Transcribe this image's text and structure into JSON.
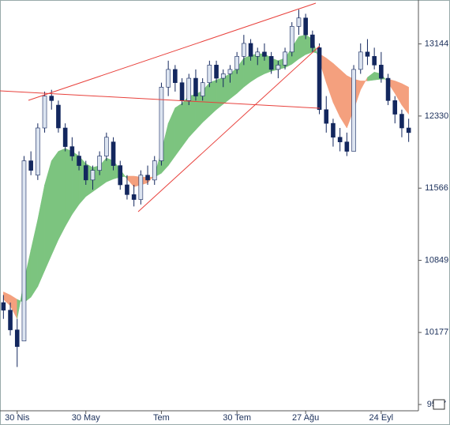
{
  "chart_data": {
    "type": "candlestick",
    "log_scale": true,
    "categories": [
      null,
      null,
      "30 Nis",
      null,
      null,
      null,
      null,
      null,
      null,
      null,
      null,
      null,
      "30 May",
      null,
      null,
      null,
      null,
      null,
      null,
      null,
      null,
      null,
      null,
      "Tem",
      null,
      null,
      null,
      null,
      null,
      null,
      null,
      null,
      null,
      null,
      "30 Tem",
      null,
      null,
      null,
      null,
      null,
      null,
      null,
      null,
      null,
      "27 Ağu",
      null,
      null,
      null,
      null,
      null,
      null,
      null,
      null,
      null,
      null,
      "24 Eyl",
      null,
      null,
      null,
      null
    ],
    "open": [
      10450,
      10380,
      10200,
      10100,
      11850,
      11700,
      12200,
      12550,
      12450,
      12200,
      12000,
      11900,
      11800,
      11650,
      11750,
      11900,
      12050,
      11800,
      11600,
      11500,
      11450,
      11700,
      11650,
      11850,
      12650,
      12850,
      12700,
      12500,
      12750,
      12550,
      12700,
      12900,
      12750,
      12800,
      12850,
      13000,
      13150,
      13000,
      13050,
      13000,
      12850,
      12900,
      13050,
      13350,
      13450,
      13250,
      13100,
      12400,
      12250,
      12100,
      12050,
      11950,
      12850,
      13050,
      13000,
      12900,
      12750,
      12500,
      12350,
      12200
    ],
    "high": [
      10520,
      10450,
      10300,
      11900,
      11950,
      12250,
      12600,
      12620,
      12500,
      12250,
      12100,
      11950,
      11850,
      11800,
      11950,
      12150,
      12100,
      11850,
      11700,
      11600,
      11750,
      11800,
      11900,
      12700,
      12950,
      12900,
      12750,
      12800,
      12850,
      12750,
      12950,
      12950,
      12850,
      12900,
      13050,
      13250,
      13200,
      13100,
      13150,
      13050,
      12950,
      13100,
      13400,
      13550,
      13500,
      13300,
      13150,
      12550,
      12300,
      12200,
      12150,
      12900,
      13150,
      13200,
      13100,
      13050,
      12800,
      12550,
      12400,
      12300
    ],
    "low": [
      10300,
      10150,
      9870,
      10100,
      11700,
      11650,
      12150,
      12400,
      12150,
      11950,
      11850,
      11750,
      11600,
      11550,
      11700,
      11850,
      11750,
      11550,
      11450,
      11380,
      11400,
      11600,
      11600,
      11800,
      12550,
      12600,
      12450,
      12450,
      12500,
      12500,
      12650,
      12700,
      12650,
      12700,
      12800,
      12900,
      12950,
      12900,
      12950,
      12800,
      12750,
      12850,
      13000,
      13250,
      13200,
      13050,
      12350,
      12150,
      12000,
      11950,
      11900,
      11950,
      12800,
      12900,
      12850,
      12700,
      12450,
      12250,
      12100,
      12050
    ],
    "close": [
      10380,
      10200,
      10050,
      11850,
      11750,
      12200,
      12550,
      12500,
      12200,
      12000,
      11900,
      11800,
      11650,
      11750,
      11900,
      12100,
      11800,
      11600,
      11500,
      11450,
      11700,
      11650,
      11850,
      12650,
      12850,
      12700,
      12500,
      12750,
      12550,
      12700,
      12900,
      12750,
      12800,
      12850,
      13000,
      13150,
      13000,
      13050,
      13000,
      12850,
      12900,
      13050,
      13350,
      13450,
      13250,
      13100,
      12400,
      12250,
      12100,
      12050,
      11950,
      12850,
      13050,
      13000,
      12900,
      12750,
      12500,
      12350,
      12200,
      12150
    ],
    "up_color": "#dce4f0",
    "down_color": "#13275e",
    "fast": [
      10480,
      10420,
      10300,
      10650,
      10950,
      11250,
      11600,
      11850,
      11950,
      11980,
      11950,
      11900,
      11820,
      11780,
      11800,
      11880,
      11850,
      11760,
      11660,
      11580,
      11600,
      11620,
      11700,
      11950,
      12250,
      12420,
      12470,
      12550,
      12570,
      12610,
      12700,
      12730,
      12760,
      12800,
      12870,
      12980,
      13010,
      13030,
      13030,
      12980,
      12950,
      12980,
      13100,
      13230,
      13250,
      13200,
      12950,
      12700,
      12480,
      12320,
      12200,
      12400,
      12620,
      12760,
      12820,
      12800,
      12700,
      12580,
      12450,
      12350
    ],
    "slow": [
      10550,
      10520,
      10480,
      10450,
      10500,
      10600,
      10750,
      10900,
      11050,
      11180,
      11300,
      11400,
      11480,
      11530,
      11580,
      11630,
      11660,
      11680,
      11690,
      11690,
      11680,
      11680,
      11680,
      11720,
      11800,
      11900,
      12000,
      12100,
      12180,
      12260,
      12330,
      12400,
      12460,
      12520,
      12580,
      12650,
      12710,
      12760,
      12800,
      12830,
      12850,
      12870,
      12910,
      12970,
      13020,
      13050,
      13030,
      12980,
      12920,
      12850,
      12780,
      12740,
      12720,
      12720,
      12730,
      12740,
      12740,
      12720,
      12690,
      12650
    ],
    "band_up_color": "#7cc47f",
    "band_down_color": "#f4a07e",
    "ylim": [
      9494,
      13666
    ],
    "yticks": [
      9547,
      10177,
      10849,
      11566,
      12330,
      13144
    ]
  }
}
